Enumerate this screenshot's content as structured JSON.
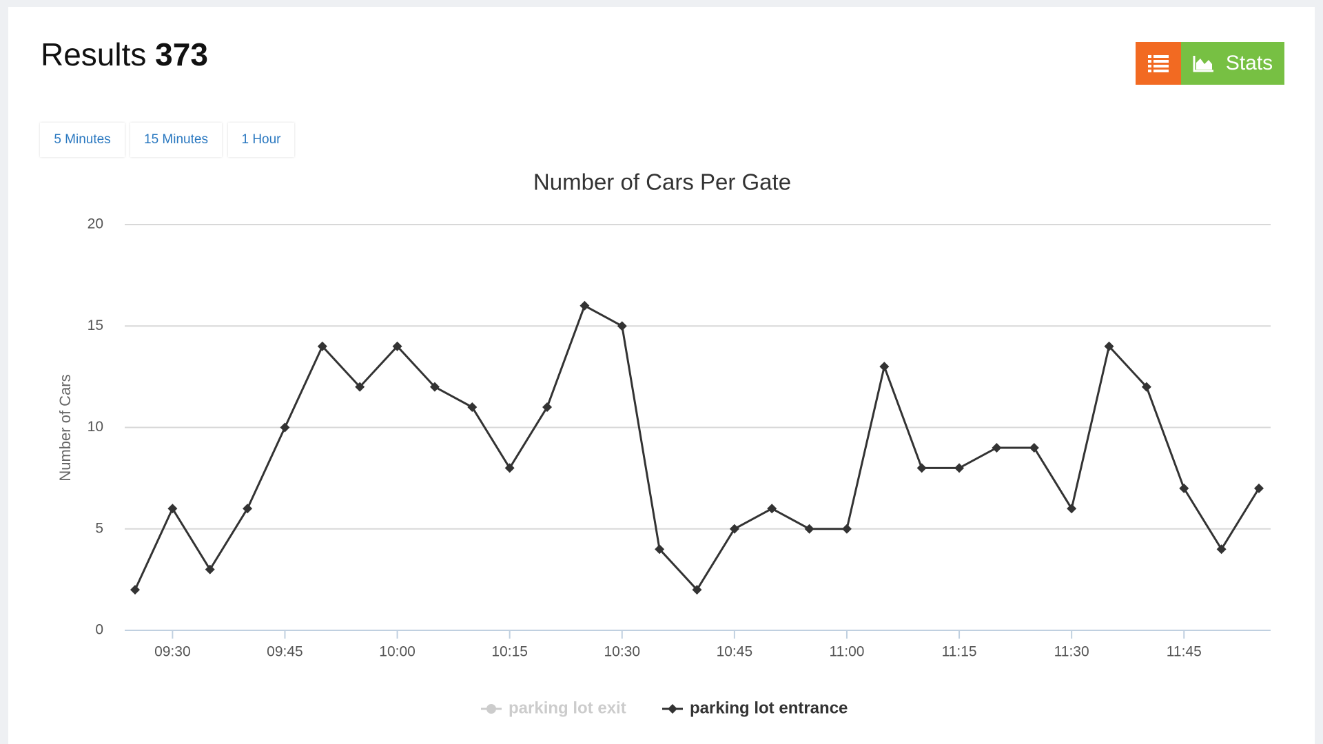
{
  "header": {
    "title": "Results",
    "count": 373
  },
  "toolbar": {
    "stats": "Stats"
  },
  "tabs": [
    "5 Minutes",
    "15 Minutes",
    "1 Hour"
  ],
  "chart_data": {
    "type": "line",
    "title": "Number of Cars Per Gate",
    "y_label": "Number of Cars",
    "categories": [
      null,
      "09:30",
      null,
      null,
      "09:45",
      null,
      null,
      "10:00",
      null,
      null,
      "10:15",
      null,
      null,
      "10:30",
      null,
      null,
      "10:45",
      null,
      null,
      "11:00",
      null,
      null,
      "11:15",
      null,
      null,
      "11:30",
      null,
      null,
      "11:45",
      null,
      null
    ],
    "series": [
      {
        "name": "parking lot exit",
        "color": "#cccccc",
        "hidden": true
      },
      {
        "name": "parking lot entrance",
        "color": "#333333",
        "values": [
          2,
          6,
          3,
          6,
          10,
          14,
          12,
          14,
          12,
          11,
          8,
          11,
          16,
          15,
          4,
          2,
          5,
          6,
          5,
          5,
          13,
          8,
          8,
          9,
          9,
          6,
          14,
          12,
          7,
          4,
          7
        ]
      }
    ],
    "ylim": [
      0,
      20
    ],
    "yticks": [
      0,
      5,
      10,
      15,
      20
    ],
    "grid": true
  }
}
